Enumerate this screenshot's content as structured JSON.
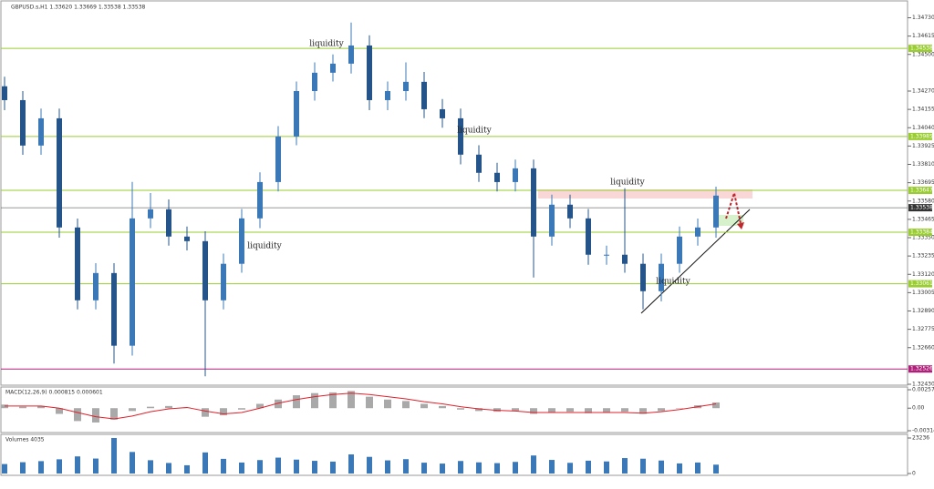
{
  "chart_data": {
    "type": "candlestick",
    "title": "GBPUSD.s,H1  1.33620 1.33669 1.33538 1.33538",
    "open": [
      1.343,
      1.34213,
      1.33928,
      1.34099,
      1.33414,
      1.32957,
      1.33128,
      1.32672,
      1.33471,
      1.33528,
      1.33357,
      1.33328,
      1.32957,
      1.33186,
      1.33471,
      1.33699,
      1.33985,
      1.3427,
      1.34385,
      1.34442,
      1.34556,
      1.34213,
      1.3427,
      1.34328,
      1.34156,
      1.34099,
      1.33871,
      1.33757,
      1.33699,
      1.33785,
      1.33357,
      1.33557,
      1.33471,
      1.33243,
      1.33243,
      1.33186,
      1.33014,
      1.33186,
      1.33357,
      1.33414
    ],
    "high": [
      1.3436,
      1.3427,
      1.3416,
      1.3416,
      1.3347,
      1.3319,
      1.3319,
      1.337,
      1.3363,
      1.3359,
      1.3342,
      1.3339,
      1.3325,
      1.3353,
      1.3376,
      1.3405,
      1.3433,
      1.3445,
      1.345,
      1.347,
      1.3462,
      1.3433,
      1.3445,
      1.3439,
      1.3422,
      1.3416,
      1.3393,
      1.3382,
      1.3384,
      1.3384,
      1.3362,
      1.3362,
      1.3353,
      1.333,
      1.3366,
      1.3325,
      1.3325,
      1.3342,
      1.3347,
      1.3367
    ],
    "low": [
      1.3415,
      1.3387,
      1.3387,
      1.3335,
      1.329,
      1.329,
      1.3256,
      1.3261,
      1.3341,
      1.333,
      1.3327,
      1.3248,
      1.329,
      1.3313,
      1.3341,
      1.3364,
      1.3393,
      1.3421,
      1.3433,
      1.3438,
      1.3415,
      1.3415,
      1.3421,
      1.341,
      1.3404,
      1.3381,
      1.337,
      1.3364,
      1.3364,
      1.331,
      1.333,
      1.3341,
      1.3318,
      1.3318,
      1.3313,
      1.329,
      1.3295,
      1.3313,
      1.333,
      1.3335
    ],
    "close": [
      1.34213,
      1.33928,
      1.34099,
      1.33414,
      1.32957,
      1.33128,
      1.32672,
      1.33471,
      1.33528,
      1.33357,
      1.33328,
      1.32957,
      1.33186,
      1.33471,
      1.33699,
      1.33985,
      1.3427,
      1.34385,
      1.34442,
      1.34556,
      1.34213,
      1.3427,
      1.34328,
      1.34156,
      1.34099,
      1.33871,
      1.33757,
      1.33699,
      1.33785,
      1.33357,
      1.33557,
      1.33471,
      1.33243,
      1.33243,
      1.33186,
      1.33014,
      1.33186,
      1.33357,
      1.33414,
      1.33614
    ],
    "up_color": "#3b78b8",
    "down_color": "#25548a",
    "ylim": [
      1.3243,
      1.3483
    ],
    "yticks": [
      {
        "value": 1.3473,
        "label": "1.34730"
      },
      {
        "value": 1.34615,
        "label": "1.34615"
      },
      {
        "value": 1.345,
        "label": "1.34500"
      },
      {
        "value": 1.3427,
        "label": "1.34270"
      },
      {
        "value": 1.34155,
        "label": "1.34155"
      },
      {
        "value": 1.3404,
        "label": "1.34040"
      },
      {
        "value": 1.33925,
        "label": "1.33925"
      },
      {
        "value": 1.3381,
        "label": "1.33810"
      },
      {
        "value": 1.33695,
        "label": "1.33695"
      },
      {
        "value": 1.3358,
        "label": "1.33580"
      },
      {
        "value": 1.33465,
        "label": "1.33465"
      },
      {
        "value": 1.3335,
        "label": "1.33350"
      },
      {
        "value": 1.33235,
        "label": "1.33235"
      },
      {
        "value": 1.3312,
        "label": "1.33120"
      },
      {
        "value": 1.33005,
        "label": "1.33005"
      },
      {
        "value": 1.3289,
        "label": "1.32890"
      },
      {
        "value": 1.32775,
        "label": "1.32775"
      },
      {
        "value": 1.3266,
        "label": "1.32660"
      },
      {
        "value": 1.3243,
        "label": "1.32430"
      }
    ],
    "levels": [
      1.34538,
      1.33985,
      1.33647,
      1.33538,
      1.33384,
      1.33061,
      1.32526
    ],
    "level_colors": [
      "#9acd32",
      "#9acd32",
      "#9acd32",
      "#333333",
      "#9acd32",
      "#9acd32",
      "#b0207a"
    ],
    "annotations": [
      "liquidity",
      "liquidity",
      "liquidity",
      "liquidity",
      "liquidity"
    ],
    "macd": {
      "title": "MACD(12,26,9) 0.000815 0.000601",
      "ylim": [
        -0.003148,
        0.002571
      ],
      "yticks": [
        0.002571,
        {
          "value": 0,
          "label": "0.00"
        },
        -0.003148
      ],
      "hist": [
        0.0005,
        0.0002,
        0.0003,
        -0.0008,
        -0.0018,
        -0.002,
        -0.0016,
        -0.0004,
        0.0002,
        0.0003,
        0.0001,
        -0.0012,
        -0.001,
        -0.0002,
        0.0006,
        0.0012,
        0.0018,
        0.0021,
        0.0022,
        0.0024,
        0.0016,
        0.0012,
        0.001,
        0.0006,
        0.0003,
        -0.0002,
        -0.0004,
        -0.0005,
        -0.0004,
        -0.0008,
        -0.0006,
        -0.0005,
        -0.0007,
        -0.0006,
        -0.0005,
        -0.0008,
        -0.0004,
        0.0,
        0.0004,
        0.0008
      ],
      "signal": [
        0.0003,
        0.0003,
        0.0003,
        0.0,
        -0.0006,
        -0.0012,
        -0.0015,
        -0.0011,
        -0.0005,
        -0.0001,
        0.0001,
        -0.0004,
        -0.0008,
        -0.0006,
        0.0,
        0.0007,
        0.0012,
        0.0016,
        0.0019,
        0.0021,
        0.0019,
        0.0016,
        0.0013,
        0.0009,
        0.0006,
        0.0002,
        -0.0001,
        -0.0003,
        -0.0004,
        -0.0006,
        -0.0006,
        -0.0006,
        -0.0006,
        -0.0006,
        -0.0006,
        -0.0007,
        -0.0005,
        -0.0002,
        0.0002,
        0.0006
      ],
      "hist_color": "#a9a9a9",
      "signal_color": "#e0202a"
    },
    "volume": {
      "title": "Volumes 4035",
      "ylim": [
        0,
        23236
      ],
      "yticks": [
        23236,
        0
      ],
      "color": "#3b78b8",
      "values": [
        6200,
        7400,
        8100,
        9300,
        11200,
        9800,
        23236,
        14100,
        8700,
        6900,
        5400,
        13800,
        9600,
        7200,
        8800,
        10400,
        9100,
        8300,
        7800,
        12500,
        10900,
        8600,
        9400,
        7100,
        6500,
        8200,
        7300,
        6800,
        7600,
        11800,
        8900,
        7000,
        8400,
        7900,
        10100,
        9700,
        8500,
        6600,
        7200,
        5800
      ]
    }
  }
}
